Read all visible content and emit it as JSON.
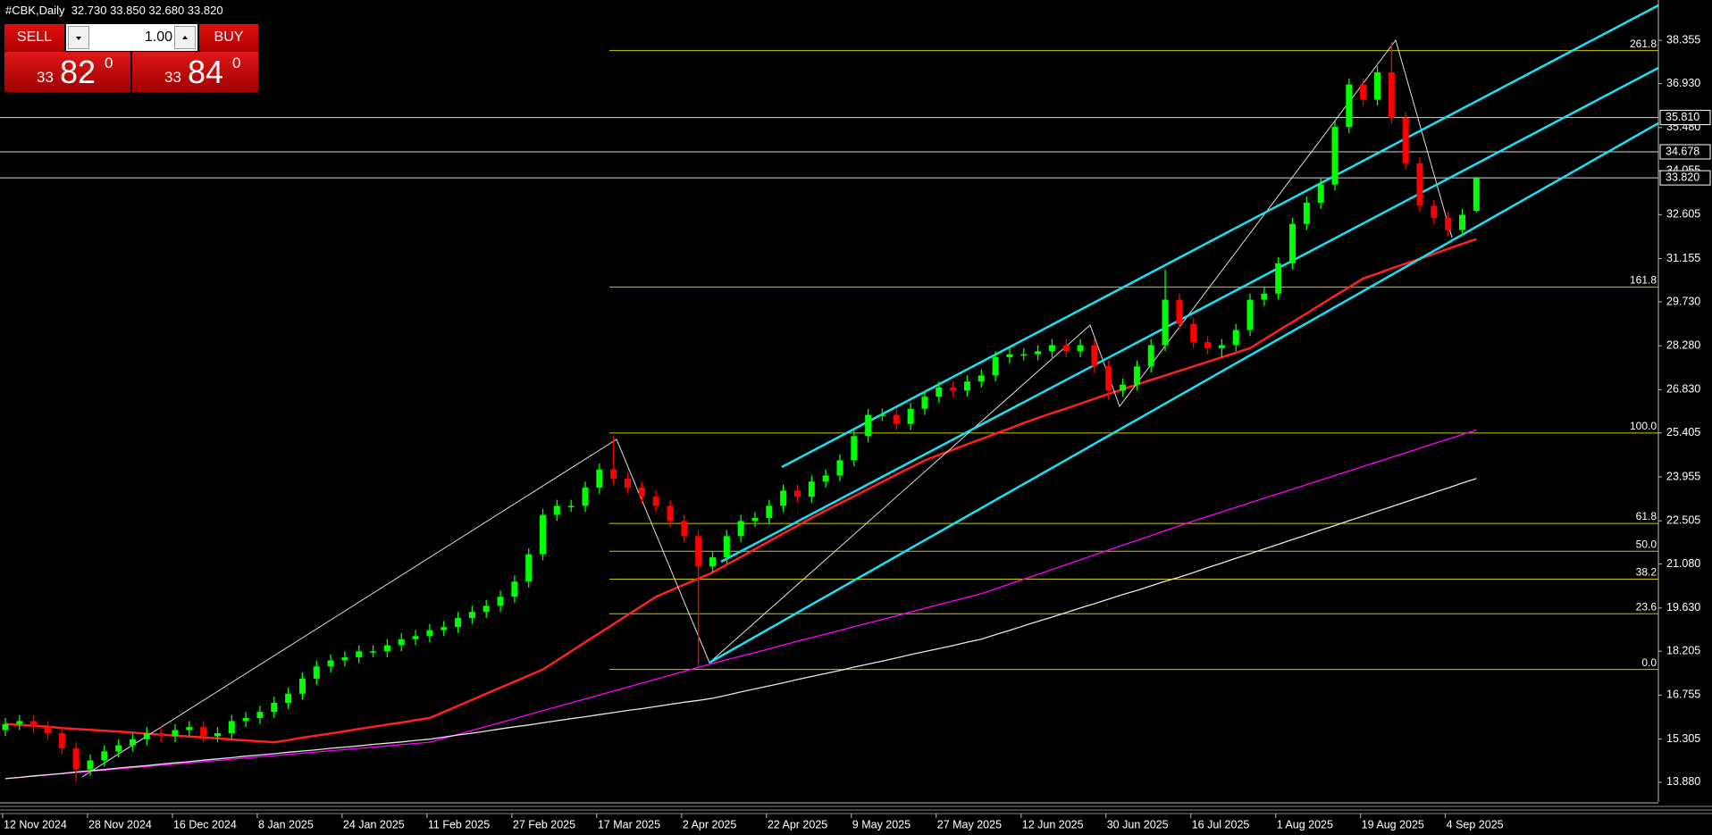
{
  "title": "#CBK,Daily  32.730 33.850 32.680 33.820",
  "trade_panel": {
    "sell": "SELL",
    "lots": "1.00",
    "buy": "BUY",
    "bid": {
      "prefix": "33",
      "pips": "82",
      "fraction": "0"
    },
    "ask": {
      "prefix": "33",
      "pips": "84",
      "fraction": "0"
    }
  },
  "chart_data": {
    "type": "candlestick",
    "categories": [
      "12 Nov 2024",
      null,
      null,
      null,
      null,
      null,
      "28 Nov 2024",
      null,
      null,
      null,
      null,
      null,
      "16 Dec 2024",
      null,
      null,
      null,
      null,
      null,
      "8 Jan 2025",
      null,
      null,
      null,
      null,
      null,
      "24 Jan 2025",
      null,
      null,
      null,
      null,
      null,
      "11 Feb 2025",
      null,
      null,
      null,
      null,
      null,
      "27 Feb 2025",
      null,
      null,
      null,
      null,
      null,
      "17 Mar 2025",
      null,
      null,
      null,
      null,
      null,
      "2 Apr 2025",
      null,
      null,
      null,
      null,
      null,
      "22 Apr 2025",
      null,
      null,
      null,
      null,
      null,
      "9 May 2025",
      null,
      null,
      null,
      null,
      null,
      "27 May 2025",
      null,
      null,
      null,
      null,
      null,
      "12 Jun 2025",
      null,
      null,
      null,
      null,
      null,
      "30 Jun 2025",
      null,
      null,
      null,
      null,
      null,
      "16 Jul 2025",
      null,
      null,
      null,
      null,
      null,
      "1 Aug 2025",
      null,
      null,
      null,
      null,
      null,
      "19 Aug 2025",
      null,
      null,
      null,
      null,
      null,
      "4 Sep 2025",
      null,
      null
    ],
    "open": [
      15.6,
      15.8,
      15.9,
      15.7,
      15.5,
      15.0,
      14.3,
      14.6,
      14.9,
      15.1,
      15.3,
      15.5,
      15.4,
      15.6,
      15.7,
      15.4,
      15.5,
      15.9,
      16.0,
      16.2,
      16.5,
      16.8,
      17.3,
      17.7,
      17.9,
      18.0,
      18.2,
      18.2,
      18.4,
      18.6,
      18.7,
      18.9,
      19.0,
      19.3,
      19.5,
      19.7,
      20.0,
      20.5,
      21.4,
      22.7,
      23.0,
      23.0,
      23.6,
      24.2,
      23.9,
      23.6,
      23.3,
      23.0,
      22.5,
      22.0,
      21.0,
      21.3,
      22.0,
      22.5,
      22.6,
      23.0,
      23.5,
      23.3,
      23.8,
      24.0,
      24.5,
      25.3,
      26.0,
      26.0,
      25.7,
      26.2,
      26.6,
      26.9,
      26.8,
      27.1,
      27.3,
      27.9,
      28.0,
      28.0,
      28.1,
      28.3,
      28.1,
      28.3,
      27.6,
      26.8,
      27.0,
      27.6,
      28.3,
      29.8,
      29.0,
      28.4,
      28.2,
      28.3,
      28.8,
      29.8,
      30.0,
      31.0,
      32.3,
      33.0,
      33.6,
      35.5,
      36.9,
      36.4,
      37.3,
      35.8,
      34.3,
      32.9,
      32.5,
      32.1,
      32.73
    ],
    "high": [
      16.0,
      16.1,
      16.1,
      15.9,
      15.7,
      15.2,
      14.8,
      15.1,
      15.3,
      15.5,
      15.7,
      15.7,
      15.8,
      15.9,
      15.9,
      15.7,
      16.1,
      16.2,
      16.4,
      16.7,
      17.0,
      17.5,
      17.9,
      18.1,
      18.2,
      18.4,
      18.4,
      18.6,
      18.8,
      18.9,
      19.1,
      19.2,
      19.5,
      19.7,
      19.9,
      20.2,
      20.7,
      21.6,
      22.9,
      23.2,
      23.2,
      23.8,
      24.4,
      25.3,
      24.1,
      23.8,
      23.5,
      23.2,
      22.7,
      22.2,
      21.5,
      22.2,
      22.7,
      22.8,
      23.2,
      23.7,
      23.7,
      24.0,
      24.2,
      24.7,
      25.5,
      26.2,
      26.2,
      26.2,
      26.4,
      26.8,
      27.1,
      27.1,
      27.3,
      27.5,
      28.1,
      28.2,
      28.2,
      28.3,
      28.5,
      28.5,
      28.5,
      28.5,
      27.8,
      27.2,
      27.8,
      28.5,
      30.8,
      30.0,
      29.2,
      28.6,
      28.5,
      29.0,
      30.0,
      30.2,
      31.2,
      32.5,
      33.2,
      33.8,
      35.7,
      37.1,
      37.1,
      37.5,
      38.3,
      36.0,
      34.5,
      33.1,
      32.7,
      32.8,
      33.85
    ],
    "low": [
      15.4,
      15.6,
      15.5,
      15.3,
      14.8,
      13.9,
      14.1,
      14.4,
      14.7,
      14.9,
      15.1,
      15.2,
      15.2,
      15.4,
      15.2,
      15.2,
      15.3,
      15.7,
      15.8,
      16.0,
      16.3,
      16.6,
      17.1,
      17.5,
      17.7,
      17.8,
      18.0,
      18.0,
      18.2,
      18.4,
      18.5,
      18.7,
      18.8,
      19.1,
      19.3,
      19.5,
      19.8,
      20.3,
      21.2,
      22.5,
      22.8,
      22.8,
      23.4,
      23.7,
      23.4,
      23.1,
      22.8,
      22.3,
      21.8,
      17.7,
      20.8,
      21.1,
      21.8,
      22.3,
      22.4,
      22.8,
      23.1,
      23.1,
      23.6,
      23.8,
      24.3,
      25.1,
      25.8,
      25.5,
      25.5,
      26.0,
      26.4,
      26.6,
      26.6,
      26.9,
      27.1,
      27.7,
      27.8,
      27.8,
      27.9,
      27.9,
      27.9,
      27.4,
      26.5,
      26.6,
      26.8,
      27.4,
      28.1,
      28.8,
      28.2,
      28.0,
      27.9,
      28.1,
      28.6,
      29.6,
      29.8,
      30.8,
      32.1,
      32.8,
      33.4,
      35.3,
      36.2,
      36.2,
      35.6,
      34.1,
      32.7,
      32.3,
      31.9,
      31.9,
      32.68
    ],
    "close": [
      15.8,
      15.9,
      15.7,
      15.5,
      15.0,
      14.3,
      14.6,
      14.9,
      15.1,
      15.3,
      15.5,
      15.4,
      15.6,
      15.7,
      15.4,
      15.5,
      15.9,
      16.0,
      16.2,
      16.5,
      16.8,
      17.3,
      17.7,
      17.9,
      18.0,
      18.2,
      18.2,
      18.4,
      18.6,
      18.7,
      18.9,
      19.0,
      19.3,
      19.5,
      19.7,
      20.0,
      20.5,
      21.4,
      22.7,
      23.0,
      23.0,
      23.6,
      24.2,
      23.9,
      23.6,
      23.3,
      23.0,
      22.5,
      22.0,
      21.0,
      21.3,
      22.0,
      22.5,
      22.6,
      23.0,
      23.5,
      23.3,
      23.8,
      24.0,
      24.5,
      25.3,
      26.0,
      26.0,
      25.7,
      26.2,
      26.6,
      26.9,
      26.8,
      27.1,
      27.3,
      27.9,
      28.0,
      28.0,
      28.1,
      28.3,
      28.1,
      28.3,
      27.6,
      26.8,
      27.0,
      27.6,
      28.3,
      29.8,
      29.0,
      28.4,
      28.2,
      28.3,
      28.8,
      29.8,
      30.0,
      31.0,
      32.3,
      33.0,
      33.6,
      35.5,
      36.9,
      36.4,
      37.3,
      35.8,
      34.3,
      32.9,
      32.5,
      32.1,
      32.6,
      33.82
    ],
    "up_color": "#00ff00",
    "down_color": "#ff0000",
    "ylim": [
      13.23,
      39.687
    ],
    "yticks": [
      {
        "value": 38.355,
        "label": "38.355"
      },
      {
        "value": 36.93,
        "label": "36.930"
      },
      {
        "value": 35.48,
        "label": "35.480"
      },
      {
        "value": 34.055,
        "label": "34.055"
      },
      {
        "value": 32.605,
        "label": "32.605"
      },
      {
        "value": 31.155,
        "label": "31.155"
      },
      {
        "value": 29.73,
        "label": "29.730"
      },
      {
        "value": 28.28,
        "label": "28.280"
      },
      {
        "value": 26.83,
        "label": "26.830"
      },
      {
        "value": 25.405,
        "label": "25.405"
      },
      {
        "value": 23.955,
        "label": "23.955"
      },
      {
        "value": 22.505,
        "label": "22.505"
      },
      {
        "value": 21.08,
        "label": "21.080"
      },
      {
        "value": 19.63,
        "label": "19.630"
      },
      {
        "value": 18.205,
        "label": "18.205"
      },
      {
        "value": 16.755,
        "label": "16.755"
      },
      {
        "value": 15.305,
        "label": "15.305"
      },
      {
        "value": 13.88,
        "label": "13.880"
      }
    ],
    "levels": [
      {
        "value": 35.81,
        "label": "35.810"
      },
      {
        "value": 34.678,
        "label": "34.678"
      },
      {
        "value": 33.82,
        "label": "33.820"
      }
    ],
    "fib_color": "#c8c800",
    "fib": [
      {
        "value": 38.02,
        "label": "261.8"
      },
      {
        "value": 30.22,
        "label": "161.8"
      },
      {
        "value": 25.4,
        "label": "100.0"
      },
      {
        "value": 22.42,
        "label": "61.8"
      },
      {
        "value": 21.5,
        "label": "50.0"
      },
      {
        "value": 20.58,
        "label": "38.2"
      },
      {
        "value": 19.44,
        "label": "23.6"
      },
      {
        "value": 17.6,
        "label": "0.0"
      }
    ],
    "lines": [
      {
        "color": "#ff2020",
        "values": [
          15.8,
          15.77,
          15.74,
          15.71,
          15.67,
          15.64,
          15.61,
          15.58,
          15.55,
          15.52,
          15.48,
          15.45,
          15.42,
          15.39,
          15.36,
          15.33,
          15.29,
          15.26,
          15.23,
          15.2,
          15.27,
          15.35,
          15.42,
          15.49,
          15.56,
          15.64,
          15.71,
          15.78,
          15.85,
          15.93,
          16.0,
          16.2,
          16.4,
          16.6,
          16.8,
          17.0,
          17.2,
          17.4,
          17.6,
          17.9,
          18.2,
          18.5,
          18.8,
          19.1,
          19.4,
          19.7,
          20.0,
          20.2,
          20.4,
          20.6,
          20.8,
          21.06,
          21.31,
          21.57,
          21.83,
          22.09,
          22.34,
          22.6,
          22.84,
          23.08,
          23.31,
          23.55,
          23.79,
          24.03,
          24.26,
          24.5,
          24.68,
          24.85,
          25.03,
          25.2,
          25.38,
          25.55,
          25.73,
          25.9,
          26.06,
          26.21,
          26.37,
          26.53,
          26.69,
          26.84,
          27.0,
          27.15,
          27.3,
          27.45,
          27.6,
          27.75,
          27.9,
          28.05,
          28.2,
          28.49,
          28.78,
          29.06,
          29.35,
          29.64,
          29.93,
          30.21,
          30.5,
          30.66,
          30.83,
          30.99,
          31.15,
          31.31,
          31.48,
          31.64,
          31.8
        ]
      },
      {
        "color": "#ff00ff",
        "values": [
          14.0,
          14.04,
          14.08,
          14.12,
          14.16,
          14.2,
          14.24,
          14.28,
          14.32,
          14.36,
          14.4,
          14.44,
          14.48,
          14.52,
          14.56,
          14.6,
          14.64,
          14.68,
          14.72,
          14.76,
          14.8,
          14.84,
          14.88,
          14.92,
          14.96,
          15.0,
          15.04,
          15.08,
          15.12,
          15.16,
          15.2,
          15.33,
          15.46,
          15.59,
          15.72,
          15.85,
          15.98,
          16.11,
          16.24,
          16.37,
          16.5,
          16.63,
          16.76,
          16.89,
          17.02,
          17.15,
          17.28,
          17.41,
          17.54,
          17.67,
          17.8,
          17.92,
          18.04,
          18.16,
          18.28,
          18.41,
          18.53,
          18.65,
          18.77,
          18.89,
          19.01,
          19.13,
          19.25,
          19.37,
          19.5,
          19.62,
          19.74,
          19.86,
          19.98,
          20.1,
          20.26,
          20.42,
          20.58,
          20.74,
          20.9,
          21.06,
          21.22,
          21.38,
          21.54,
          21.7,
          21.86,
          22.02,
          22.18,
          22.34,
          22.5,
          22.65,
          22.8,
          22.95,
          23.1,
          23.25,
          23.4,
          23.55,
          23.7,
          23.85,
          24.0,
          24.15,
          24.3,
          24.45,
          24.6,
          24.75,
          24.9,
          25.05,
          25.2,
          25.35,
          25.5
        ]
      },
      {
        "color": "#e6e6e6",
        "values": [
          14.0,
          14.04,
          14.09,
          14.13,
          14.17,
          14.22,
          14.26,
          14.3,
          14.35,
          14.39,
          14.43,
          14.48,
          14.52,
          14.56,
          14.61,
          14.65,
          14.69,
          14.74,
          14.78,
          14.82,
          14.87,
          14.91,
          14.95,
          15.0,
          15.04,
          15.08,
          15.13,
          15.17,
          15.21,
          15.26,
          15.3,
          15.37,
          15.44,
          15.5,
          15.57,
          15.64,
          15.71,
          15.77,
          15.84,
          15.91,
          15.98,
          16.04,
          16.11,
          16.18,
          16.25,
          16.31,
          16.38,
          16.45,
          16.52,
          16.58,
          16.65,
          16.75,
          16.86,
          16.96,
          17.06,
          17.16,
          17.27,
          17.37,
          17.47,
          17.57,
          17.68,
          17.78,
          17.88,
          17.98,
          18.09,
          18.19,
          18.29,
          18.39,
          18.5,
          18.6,
          18.75,
          18.89,
          19.04,
          19.19,
          19.33,
          19.48,
          19.63,
          19.77,
          19.92,
          20.07,
          20.21,
          20.36,
          20.51,
          20.65,
          20.8,
          20.96,
          21.11,
          21.27,
          21.42,
          21.58,
          21.73,
          21.89,
          22.04,
          22.2,
          22.35,
          22.51,
          22.66,
          22.82,
          22.97,
          23.13,
          23.28,
          23.44,
          23.59,
          23.75,
          23.9
        ]
      }
    ]
  }
}
